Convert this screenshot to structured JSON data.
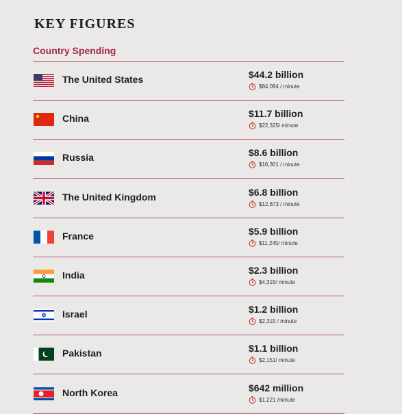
{
  "header": {
    "title": "KEY FIGURES",
    "subtitle": "Country Spending"
  },
  "rows": [
    {
      "country": "The United States",
      "amount": "$44.2 billion",
      "per_minute": "$84,094 / minute"
    },
    {
      "country": "China",
      "amount": "$11.7 billion",
      "per_minute": "$22,325/ minute"
    },
    {
      "country": "Russia",
      "amount": "$8.6 billion",
      "per_minute": "$16,301 / minute"
    },
    {
      "country": "The United Kingdom",
      "amount": "$6.8 billion",
      "per_minute": "$12,873 / minute"
    },
    {
      "country": "France",
      "amount": "$5.9 billion",
      "per_minute": "$11,245/ minute"
    },
    {
      "country": "India",
      "amount": "$2.3 billion",
      "per_minute": "$4,315/ minute"
    },
    {
      "country": "Israel",
      "amount": "$1.2 billion",
      "per_minute": "$2,315 / minute"
    },
    {
      "country": "Pakistan",
      "amount": "$1.1 billion",
      "per_minute": "$2,151/ minute"
    },
    {
      "country": "North Korea",
      "amount": "$642 million",
      "per_minute": "$1,221 /minute"
    }
  ]
}
